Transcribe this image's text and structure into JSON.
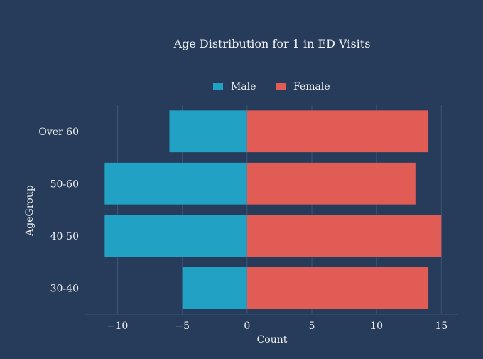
{
  "chart_data": {
    "type": "bar",
    "orientation": "horizontal",
    "barmode": "relative",
    "title": "Age Distribution for 1 in ED Visits",
    "xlabel": "Count",
    "ylabel": "AgeGroup",
    "categories": [
      "30-40",
      "40-50",
      "50-60",
      "Over 60"
    ],
    "series": [
      {
        "name": "Male",
        "color": "#21a2c4",
        "values": [
          -5,
          -11,
          -11,
          -6
        ]
      },
      {
        "name": "Female",
        "color": "#e05c55",
        "values": [
          14,
          15,
          13,
          14
        ]
      }
    ],
    "xlim": [
      -12.5,
      16.3
    ],
    "xticks": [
      -10,
      -5,
      0,
      5,
      10,
      15
    ],
    "xtick_labels": [
      "−10",
      "−5",
      "0",
      "5",
      "10",
      "15"
    ],
    "grid": true,
    "legend_position": "top-center",
    "background": "#263c5a",
    "grid_color": "#3b5478"
  }
}
